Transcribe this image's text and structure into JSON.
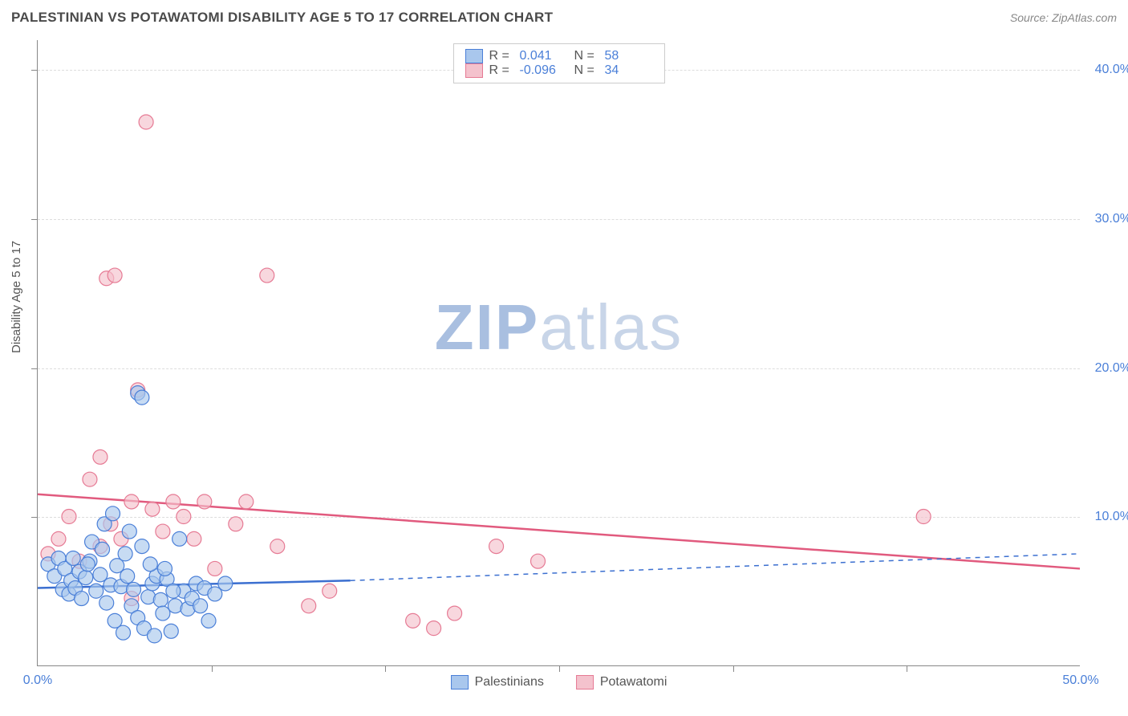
{
  "header": {
    "title": "PALESTINIAN VS POTAWATOMI DISABILITY AGE 5 TO 17 CORRELATION CHART",
    "source": "Source: ZipAtlas.com"
  },
  "chart": {
    "type": "scatter",
    "ylabel": "Disability Age 5 to 17",
    "background_color": "#ffffff",
    "grid_color": "#dddddd",
    "axis_color": "#888888",
    "tick_label_color": "#4a7fd8",
    "tick_label_fontsize": 16,
    "xlim": [
      0,
      50
    ],
    "ylim": [
      0,
      42
    ],
    "xticks": [
      0,
      50
    ],
    "xtick_labels": [
      "0.0%",
      "50.0%"
    ],
    "xtick_minor": [
      8.33,
      16.67,
      25,
      33.33,
      41.67
    ],
    "yticks": [
      10,
      20,
      30,
      40
    ],
    "ytick_labels": [
      "10.0%",
      "20.0%",
      "30.0%",
      "40.0%"
    ],
    "series": [
      {
        "name": "Palestinians",
        "marker_fill": "#a9c7ed",
        "marker_stroke": "#4a7fd8",
        "marker_radius": 9,
        "line_color": "#3b6fd0",
        "line_width": 2.5,
        "dash_color": "#3b6fd0",
        "R": "0.041",
        "N": "58",
        "trend": {
          "x1": 0,
          "y1": 5.2,
          "x2": 15,
          "y2": 5.7
        },
        "trend_dash": {
          "x1": 15,
          "y1": 5.7,
          "x2": 50,
          "y2": 7.5
        },
        "points": [
          [
            0.5,
            6.8
          ],
          [
            0.8,
            6.0
          ],
          [
            1.0,
            7.2
          ],
          [
            1.2,
            5.1
          ],
          [
            1.3,
            6.5
          ],
          [
            1.5,
            4.8
          ],
          [
            1.6,
            5.7
          ],
          [
            1.8,
            5.2
          ],
          [
            2.0,
            6.3
          ],
          [
            2.1,
            4.5
          ],
          [
            2.3,
            5.9
          ],
          [
            2.5,
            7.0
          ],
          [
            2.6,
            8.3
          ],
          [
            2.8,
            5.0
          ],
          [
            3.0,
            6.1
          ],
          [
            3.2,
            9.5
          ],
          [
            3.3,
            4.2
          ],
          [
            3.5,
            5.4
          ],
          [
            3.6,
            10.2
          ],
          [
            3.7,
            3.0
          ],
          [
            3.8,
            6.7
          ],
          [
            4.0,
            5.3
          ],
          [
            4.1,
            2.2
          ],
          [
            4.2,
            7.5
          ],
          [
            4.4,
            9.0
          ],
          [
            4.5,
            4.0
          ],
          [
            4.6,
            5.1
          ],
          [
            4.8,
            3.2
          ],
          [
            5.0,
            8.0
          ],
          [
            5.1,
            2.5
          ],
          [
            5.3,
            4.6
          ],
          [
            5.5,
            5.5
          ],
          [
            5.6,
            2.0
          ],
          [
            5.7,
            6.0
          ],
          [
            5.9,
            4.4
          ],
          [
            6.0,
            3.5
          ],
          [
            6.2,
            5.8
          ],
          [
            6.4,
            2.3
          ],
          [
            6.6,
            4.0
          ],
          [
            6.8,
            8.5
          ],
          [
            7.0,
            5.0
          ],
          [
            7.2,
            3.8
          ],
          [
            7.4,
            4.5
          ],
          [
            7.6,
            5.5
          ],
          [
            7.8,
            4.0
          ],
          [
            8.0,
            5.2
          ],
          [
            8.2,
            3.0
          ],
          [
            8.5,
            4.8
          ],
          [
            9.0,
            5.5
          ],
          [
            4.8,
            18.3
          ],
          [
            5.0,
            18.0
          ],
          [
            1.7,
            7.2
          ],
          [
            2.4,
            6.8
          ],
          [
            3.1,
            7.8
          ],
          [
            4.3,
            6.0
          ],
          [
            5.4,
            6.8
          ],
          [
            6.1,
            6.5
          ],
          [
            6.5,
            5.0
          ]
        ]
      },
      {
        "name": "Potawatomi",
        "marker_fill": "#f4c2cd",
        "marker_stroke": "#e67a94",
        "marker_radius": 9,
        "line_color": "#e15a7e",
        "line_width": 2.5,
        "R": "-0.096",
        "N": "34",
        "trend": {
          "x1": 0,
          "y1": 11.5,
          "x2": 50,
          "y2": 6.5
        },
        "points": [
          [
            0.5,
            7.5
          ],
          [
            1.0,
            8.5
          ],
          [
            1.5,
            10.0
          ],
          [
            2.0,
            7.0
          ],
          [
            2.5,
            12.5
          ],
          [
            3.0,
            8.0
          ],
          [
            3.3,
            26.0
          ],
          [
            3.5,
            9.5
          ],
          [
            3.7,
            26.2
          ],
          [
            4.0,
            8.5
          ],
          [
            4.5,
            11.0
          ],
          [
            4.8,
            18.5
          ],
          [
            5.2,
            36.5
          ],
          [
            5.5,
            10.5
          ],
          [
            6.0,
            9.0
          ],
          [
            6.5,
            11.0
          ],
          [
            7.0,
            10.0
          ],
          [
            7.5,
            8.5
          ],
          [
            8.0,
            11.0
          ],
          [
            8.5,
            6.5
          ],
          [
            9.5,
            9.5
          ],
          [
            10.0,
            11.0
          ],
          [
            11.0,
            26.2
          ],
          [
            11.5,
            8.0
          ],
          [
            13.0,
            4.0
          ],
          [
            14.0,
            5.0
          ],
          [
            18.0,
            3.0
          ],
          [
            19.0,
            2.5
          ],
          [
            20.0,
            3.5
          ],
          [
            22.0,
            8.0
          ],
          [
            24.0,
            7.0
          ],
          [
            42.5,
            10.0
          ],
          [
            3.0,
            14.0
          ],
          [
            4.5,
            4.5
          ]
        ]
      }
    ],
    "legend_top": {
      "cols": [
        "R =",
        "N ="
      ]
    },
    "watermark": {
      "brand": "ZIP",
      "suffix": "atlas",
      "color_brand": "#a9bfe0",
      "color_suffix": "#c8d5e8",
      "fontsize": 80
    }
  }
}
